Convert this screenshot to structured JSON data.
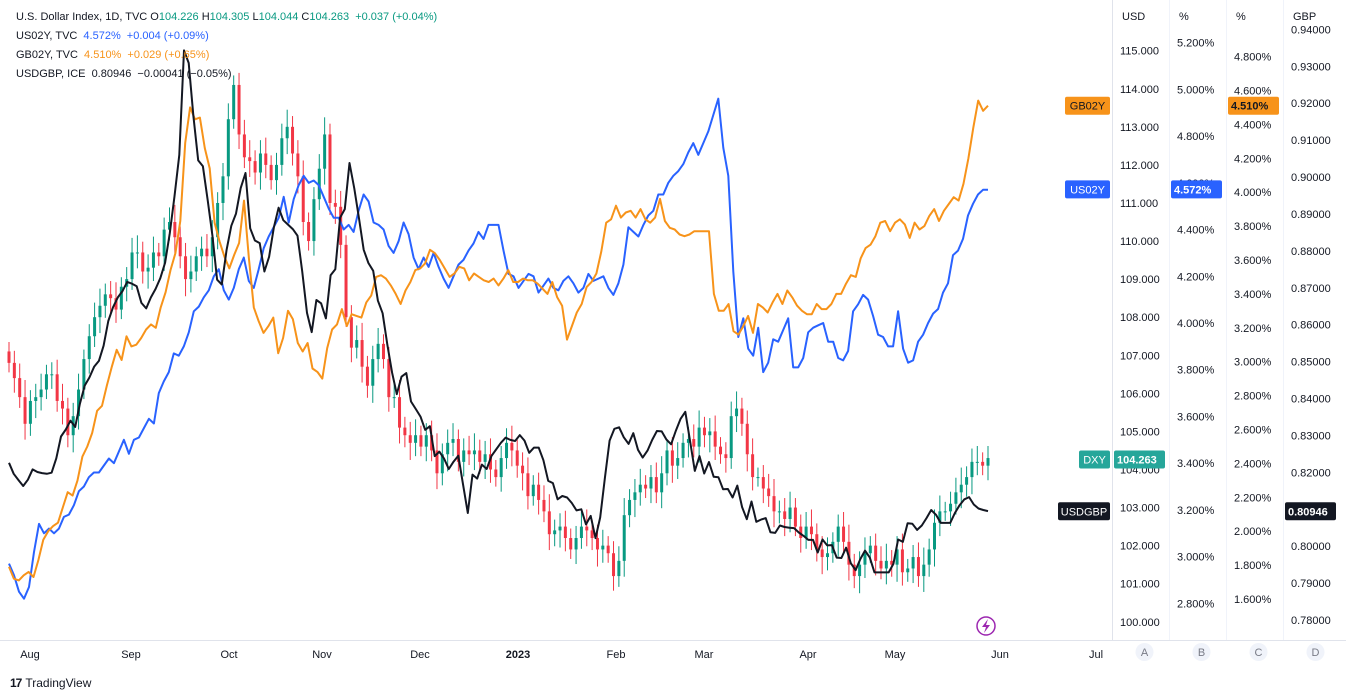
{
  "legend": [
    {
      "name": "U.S. Dollar Index, 1D, TVC",
      "parts": [
        {
          "label": "O",
          "value": "104.226"
        },
        {
          "label": "H",
          "value": "104.305"
        },
        {
          "label": "L",
          "value": "104.044"
        },
        {
          "label": "C",
          "value": "104.263"
        }
      ],
      "change": "+0.037 (+0.04%)",
      "color": "#089981"
    },
    {
      "name": "US02Y, TVC",
      "value": "4.572%",
      "change": "+0.004 (+0.09%)",
      "color": "#2962ff"
    },
    {
      "name": "GB02Y, TVC",
      "value": "4.510%",
      "change": "+0.029 (+0.65%)",
      "color": "#f7931a"
    },
    {
      "name": "USDGBP, ICE",
      "value": "0.80946",
      "change": "−0.00041 (−0.05%)",
      "color": "#131722"
    }
  ],
  "footer": {
    "brand": "TradingView",
    "logo": "tradingview-logo-icon"
  },
  "chart_data": {
    "type": "line",
    "x_ticks": [
      "Aug",
      "Sep",
      "Oct",
      "Nov",
      "Dec",
      "2023",
      "Feb",
      "Mar",
      "Apr",
      "May",
      "Jun",
      "Jul"
    ],
    "axes": [
      {
        "id": "A",
        "unit": "USD",
        "range": [
          99.6,
          116.2
        ],
        "ticks": [
          "100.000",
          "101.000",
          "102.000",
          "103.000",
          "104.000",
          "105.000",
          "106.000",
          "107.000",
          "108.000",
          "109.000",
          "110.000",
          "111.000",
          "112.000",
          "113.000",
          "114.000",
          "115.000"
        ]
      },
      {
        "id": "B",
        "unit": "%",
        "range": [
          2.656,
          5.361
        ],
        "ticks": [
          "2.800%",
          "3.000%",
          "3.200%",
          "3.400%",
          "3.600%",
          "3.800%",
          "4.000%",
          "4.200%",
          "4.400%",
          "4.600%",
          "4.800%",
          "5.000%",
          "5.200%"
        ]
      },
      {
        "id": "C",
        "unit": "%",
        "range": [
          1.376,
          5.104
        ],
        "ticks": [
          "1.600%",
          "1.800%",
          "2.000%",
          "2.200%",
          "2.400%",
          "2.600%",
          "2.800%",
          "3.000%",
          "3.200%",
          "3.400%",
          "3.600%",
          "3.800%",
          "4.000%",
          "4.200%",
          "4.400%",
          "4.600%",
          "4.800%"
        ]
      },
      {
        "id": "D",
        "unit": "GBP",
        "range": [
          0.7754,
          0.9466
        ],
        "ticks": [
          "0.78000",
          "0.79000",
          "0.80000",
          "0.81000",
          "0.82000",
          "0.83000",
          "0.84000",
          "0.85000",
          "0.86000",
          "0.87000",
          "0.88000",
          "0.89000",
          "0.90000",
          "0.91000",
          "0.92000",
          "0.93000",
          "0.94000"
        ]
      }
    ],
    "series": [
      {
        "name": "DXY",
        "axis": "A",
        "style": "candles",
        "up": "#089981",
        "down": "#f23645",
        "last": "104.263",
        "label_color": "#26a69a",
        "close": [
          106.8,
          106.4,
          105.9,
          105.2,
          105.8,
          105.9,
          106.1,
          106.5,
          106.5,
          105.8,
          105.6,
          104.9,
          105.4,
          106.1,
          106.9,
          107.5,
          108.0,
          108.3,
          108.6,
          108.5,
          108.2,
          108.8,
          109.0,
          109.7,
          109.7,
          109.2,
          109.3,
          109.7,
          109.6,
          110.3,
          110.5,
          110.1,
          109.6,
          109.0,
          109.2,
          109.6,
          109.8,
          109.6,
          110.1,
          111.0,
          111.7,
          113.2,
          114.1,
          112.8,
          112.2,
          112.1,
          111.8,
          112.3,
          112.0,
          111.6,
          112.0,
          112.7,
          113.0,
          112.3,
          111.7,
          110.5,
          110.0,
          111.1,
          111.9,
          112.8,
          111.0,
          110.9,
          109.9,
          108.0,
          107.2,
          107.4,
          106.7,
          106.2,
          106.9,
          107.3,
          106.9,
          105.9,
          105.9,
          105.1,
          104.9,
          104.7,
          104.9,
          104.6,
          104.9,
          104.5,
          103.9,
          104.4,
          104.7,
          104.8,
          104.2,
          104.5,
          104.4,
          104.5,
          104.2,
          104.4,
          104.0,
          103.8,
          104.3,
          104.7,
          104.5,
          104.1,
          103.9,
          103.3,
          103.6,
          103.2,
          102.9,
          102.3,
          102.4,
          102.5,
          102.2,
          101.9,
          102.2,
          102.5,
          102.4,
          102.2,
          101.9,
          102.0,
          101.8,
          101.2,
          101.6,
          102.8,
          103.2,
          103.4,
          103.6,
          103.5,
          103.8,
          103.4,
          103.9,
          104.5,
          104.1,
          104.3,
          104.7,
          104.8,
          104.6,
          105.1,
          104.9,
          105.0,
          104.6,
          104.4,
          104.3,
          105.4,
          105.6,
          105.2,
          104.4,
          103.8,
          103.8,
          103.5,
          103.3,
          102.9,
          102.9,
          102.7,
          103.0,
          102.5,
          102.2,
          102.5,
          102.3,
          101.9,
          101.7,
          101.8,
          102.1,
          102.5,
          102.1,
          101.5,
          101.2,
          101.5,
          101.8,
          102.0,
          101.6,
          101.4,
          101.6,
          101.5,
          101.9,
          101.3,
          101.4,
          101.7,
          101.2,
          101.5,
          101.9,
          102.6,
          102.9,
          102.9,
          103.1,
          103.4,
          103.6,
          103.8,
          104.2,
          104.2,
          104.1,
          104.3
        ]
      },
      {
        "name": "US02Y",
        "axis": "B",
        "style": "line",
        "color": "#2962ff",
        "last": "4.572%",
        "values": [
          2.97,
          2.92,
          2.85,
          2.82,
          2.87,
          3.02,
          3.14,
          3.1,
          3.12,
          3.1,
          3.12,
          3.17,
          3.18,
          3.22,
          3.28,
          3.3,
          3.34,
          3.36,
          3.36,
          3.39,
          3.42,
          3.4,
          3.45,
          3.5,
          3.44,
          3.5,
          3.51,
          3.55,
          3.59,
          3.57,
          3.7,
          3.75,
          3.79,
          3.87,
          3.86,
          3.9,
          3.96,
          4.05,
          4.07,
          4.11,
          4.14,
          4.2,
          4.23,
          4.14,
          4.1,
          4.15,
          4.23,
          4.28,
          4.18,
          4.15,
          4.23,
          4.32,
          4.37,
          4.41,
          4.45,
          4.54,
          4.43,
          4.53,
          4.59,
          4.63,
          4.6,
          4.61,
          4.59,
          4.54,
          4.49,
          4.45,
          4.45,
          4.4,
          4.42,
          4.39,
          4.48,
          4.55,
          4.52,
          4.43,
          4.42,
          4.4,
          4.33,
          4.3,
          4.35,
          4.43,
          4.38,
          4.28,
          4.23,
          4.28,
          4.24,
          4.3,
          4.24,
          4.19,
          4.15,
          4.2,
          4.25,
          4.27,
          4.31,
          4.34,
          4.39,
          4.36,
          4.42,
          4.42,
          4.42,
          4.31,
          4.21,
          4.2,
          4.15,
          4.18,
          4.21,
          4.2,
          4.13,
          4.16,
          4.19,
          4.15,
          4.14,
          4.18,
          4.2,
          4.17,
          4.13,
          4.15,
          4.21,
          4.18,
          4.19,
          4.2,
          4.15,
          4.12,
          4.17,
          4.25,
          4.41,
          4.39,
          4.37,
          4.42,
          4.46,
          4.48,
          4.55,
          4.55,
          4.6,
          4.63,
          4.65,
          4.68,
          4.73,
          4.77,
          4.72,
          4.77,
          4.82,
          4.89,
          4.96,
          4.75,
          4.63,
          4.22,
          3.94,
          4.02,
          3.89,
          3.86,
          3.98,
          3.79,
          3.83,
          3.93,
          3.92,
          3.97,
          4.02,
          3.81,
          3.81,
          3.85,
          3.96,
          3.98,
          3.99,
          4.0,
          3.92,
          3.92,
          3.85,
          3.84,
          3.88,
          4.05,
          4.08,
          4.12,
          4.1,
          4.03,
          3.95,
          3.94,
          3.9,
          3.9,
          4.05,
          3.89,
          3.83,
          3.84,
          3.92,
          3.95,
          4.0,
          4.04,
          4.06,
          4.13,
          4.17,
          4.29,
          4.31,
          4.36,
          4.46,
          4.51,
          4.55,
          4.57,
          4.57
        ]
      },
      {
        "name": "GB02Y",
        "axis": "C",
        "style": "line",
        "color": "#f7931a",
        "last": "4.510%",
        "values": [
          1.79,
          1.72,
          1.71,
          1.74,
          1.76,
          1.73,
          1.83,
          1.95,
          2.0,
          2.03,
          2.05,
          2.14,
          2.23,
          2.21,
          2.3,
          2.44,
          2.5,
          2.58,
          2.71,
          2.74,
          2.86,
          2.97,
          3.07,
          3.01,
          3.15,
          3.09,
          3.1,
          3.14,
          3.19,
          3.22,
          3.2,
          3.32,
          3.41,
          3.54,
          3.64,
          3.83,
          4.29,
          4.5,
          4.43,
          4.44,
          4.26,
          4.14,
          3.82,
          3.71,
          3.62,
          3.55,
          3.63,
          3.7,
          3.95,
          3.61,
          3.32,
          3.24,
          3.17,
          3.21,
          3.26,
          3.05,
          3.14,
          3.3,
          3.25,
          3.11,
          3.06,
          3.11,
          2.96,
          2.94,
          2.9,
          3.08,
          3.19,
          3.22,
          3.31,
          3.21,
          3.28,
          3.27,
          3.26,
          3.35,
          3.39,
          3.5,
          3.51,
          3.49,
          3.45,
          3.4,
          3.34,
          3.42,
          3.47,
          3.54,
          3.55,
          3.58,
          3.66,
          3.64,
          3.6,
          3.55,
          3.5,
          3.52,
          3.56,
          3.55,
          3.48,
          3.52,
          3.5,
          3.48,
          3.47,
          3.49,
          3.45,
          3.49,
          3.54,
          3.47,
          3.47,
          3.49,
          3.48,
          3.48,
          3.46,
          3.43,
          3.4,
          3.47,
          3.38,
          3.33,
          3.13,
          3.21,
          3.29,
          3.34,
          3.44,
          3.47,
          3.52,
          3.65,
          3.82,
          3.84,
          3.92,
          3.85,
          3.88,
          3.89,
          3.85,
          3.9,
          3.84,
          3.82,
          3.85,
          3.96,
          3.83,
          3.79,
          3.78,
          3.75,
          3.74,
          3.75,
          3.77,
          3.77,
          3.77,
          3.77,
          3.4,
          3.3,
          3.3,
          3.34,
          3.18,
          3.16,
          3.21,
          3.27,
          3.17,
          3.34,
          3.32,
          3.29,
          3.35,
          3.4,
          3.34,
          3.42,
          3.38,
          3.33,
          3.3,
          3.28,
          3.28,
          3.34,
          3.31,
          3.31,
          3.34,
          3.4,
          3.4,
          3.46,
          3.51,
          3.5,
          3.61,
          3.67,
          3.69,
          3.74,
          3.82,
          3.83,
          3.77,
          3.82,
          3.84,
          3.81,
          3.73,
          3.82,
          3.78,
          3.8,
          3.86,
          3.9,
          3.83,
          3.89,
          3.93,
          3.97,
          3.95,
          4.05,
          4.2,
          4.38,
          4.54,
          4.48,
          4.51
        ]
      },
      {
        "name": "USDGBP",
        "axis": "D",
        "style": "line",
        "color": "#131722",
        "last": "0.80946",
        "values": [
          0.8226,
          0.8196,
          0.8179,
          0.8163,
          0.818,
          0.8208,
          0.8201,
          0.8198,
          0.8196,
          0.8199,
          0.8238,
          0.8297,
          0.8316,
          0.834,
          0.8323,
          0.8386,
          0.8435,
          0.8457,
          0.8486,
          0.8502,
          0.8543,
          0.861,
          0.8647,
          0.8674,
          0.8691,
          0.8716,
          0.8711,
          0.8704,
          0.8659,
          0.8644,
          0.8674,
          0.8697,
          0.8726,
          0.8768,
          0.8848,
          0.8948,
          0.906,
          0.9343,
          0.9309,
          0.9165,
          0.9045,
          0.9029,
          0.8939,
          0.8842,
          0.8722,
          0.8709,
          0.8803,
          0.8868,
          0.8901,
          0.897,
          0.9011,
          0.8861,
          0.8828,
          0.8821,
          0.8744,
          0.8784,
          0.8864,
          0.8917,
          0.8883,
          0.8871,
          0.8859,
          0.8841,
          0.8745,
          0.8632,
          0.858,
          0.8667,
          0.8658,
          0.8617,
          0.8734,
          0.875,
          0.889,
          0.8913,
          0.9038,
          0.8969,
          0.8888,
          0.8803,
          0.8767,
          0.8746,
          0.8665,
          0.8631,
          0.8545,
          0.847,
          0.8412,
          0.8459,
          0.8469,
          0.8392,
          0.8372,
          0.8351,
          0.8315,
          0.8325,
          0.8244,
          0.8256,
          0.8237,
          0.8209,
          0.8229,
          0.8245,
          0.8168,
          0.809,
          0.8194,
          0.8183,
          0.8221,
          0.8209,
          0.8244,
          0.8262,
          0.828,
          0.8294,
          0.8288,
          0.8285,
          0.8301,
          0.8286,
          0.8253,
          0.8267,
          0.8267,
          0.8233,
          0.8177,
          0.8171,
          0.8127,
          0.8136,
          0.8132,
          0.8117,
          0.8097,
          0.81,
          0.8059,
          0.8082,
          0.8022,
          0.8078,
          0.8185,
          0.8286,
          0.8318,
          0.8322,
          0.8295,
          0.8277,
          0.8306,
          0.8261,
          0.824,
          0.8259,
          0.8288,
          0.8312,
          0.8311,
          0.8289,
          0.8276,
          0.8313,
          0.8345,
          0.8364,
          0.8286,
          0.8204,
          0.8244,
          0.8197,
          0.8228,
          0.8188,
          0.8187,
          0.8154,
          0.8155,
          0.8132,
          0.8164,
          0.8106,
          0.8073,
          0.8121,
          0.8066,
          0.8072,
          0.8076,
          0.8038,
          0.8036,
          0.8056,
          0.8052,
          0.805,
          0.8049,
          0.8037,
          0.8028,
          0.8017,
          0.8017,
          0.7983,
          0.8018,
          0.8002,
          0.8003,
          0.7969,
          0.7968,
          0.7996,
          0.7954,
          0.7935,
          0.7965,
          0.7988,
          0.7969,
          0.7929,
          0.7929,
          0.7929,
          0.7929,
          0.7952,
          0.8018,
          0.8012,
          0.8062,
          0.8061,
          0.8044,
          0.8056,
          0.8076,
          0.8098,
          0.8085,
          0.8063,
          0.8063,
          0.8063,
          0.809,
          0.8111,
          0.8127,
          0.8133,
          0.8113,
          0.8102,
          0.8098,
          0.8095
        ]
      }
    ]
  }
}
